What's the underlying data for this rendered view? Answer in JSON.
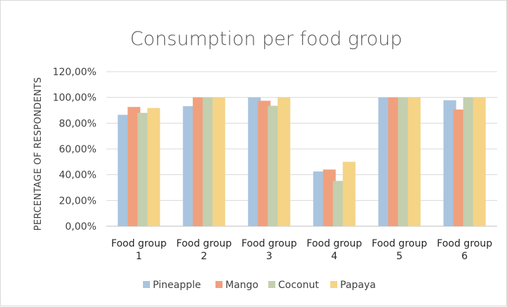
{
  "chart_data": {
    "type": "bar",
    "title": "Consumption per food group",
    "xlabel": "",
    "ylabel": "PERCENTAGE OF RESPONDENTS",
    "categories": [
      [
        "Food group",
        "1"
      ],
      [
        "Food group",
        "2"
      ],
      [
        "Food group",
        "3"
      ],
      [
        "Food group",
        "4"
      ],
      [
        "Food group",
        "5"
      ],
      [
        "Food group",
        "6"
      ]
    ],
    "ylim": [
      0,
      120
    ],
    "yticks": [
      "0,00%",
      "20,00%",
      "40,00%",
      "60,00%",
      "80,00%",
      "100,00%",
      "120,00%"
    ],
    "grid": true,
    "legend_position": "bottom",
    "series": [
      {
        "name": "Pineapple",
        "color": "#a9c4de",
        "values": [
          86.5,
          93.2,
          100,
          42.5,
          100,
          97.8
        ]
      },
      {
        "name": "Mango",
        "color": "#f0a07d",
        "values": [
          92.6,
          100,
          97.4,
          44.0,
          100,
          90.6
        ]
      },
      {
        "name": "Coconut",
        "color": "#c3cfae",
        "values": [
          88.0,
          100,
          93.5,
          35.2,
          100,
          100
        ]
      },
      {
        "name": "Papaya",
        "color": "#f5d486",
        "values": [
          91.8,
          100,
          100,
          50.0,
          100,
          100
        ]
      }
    ]
  }
}
